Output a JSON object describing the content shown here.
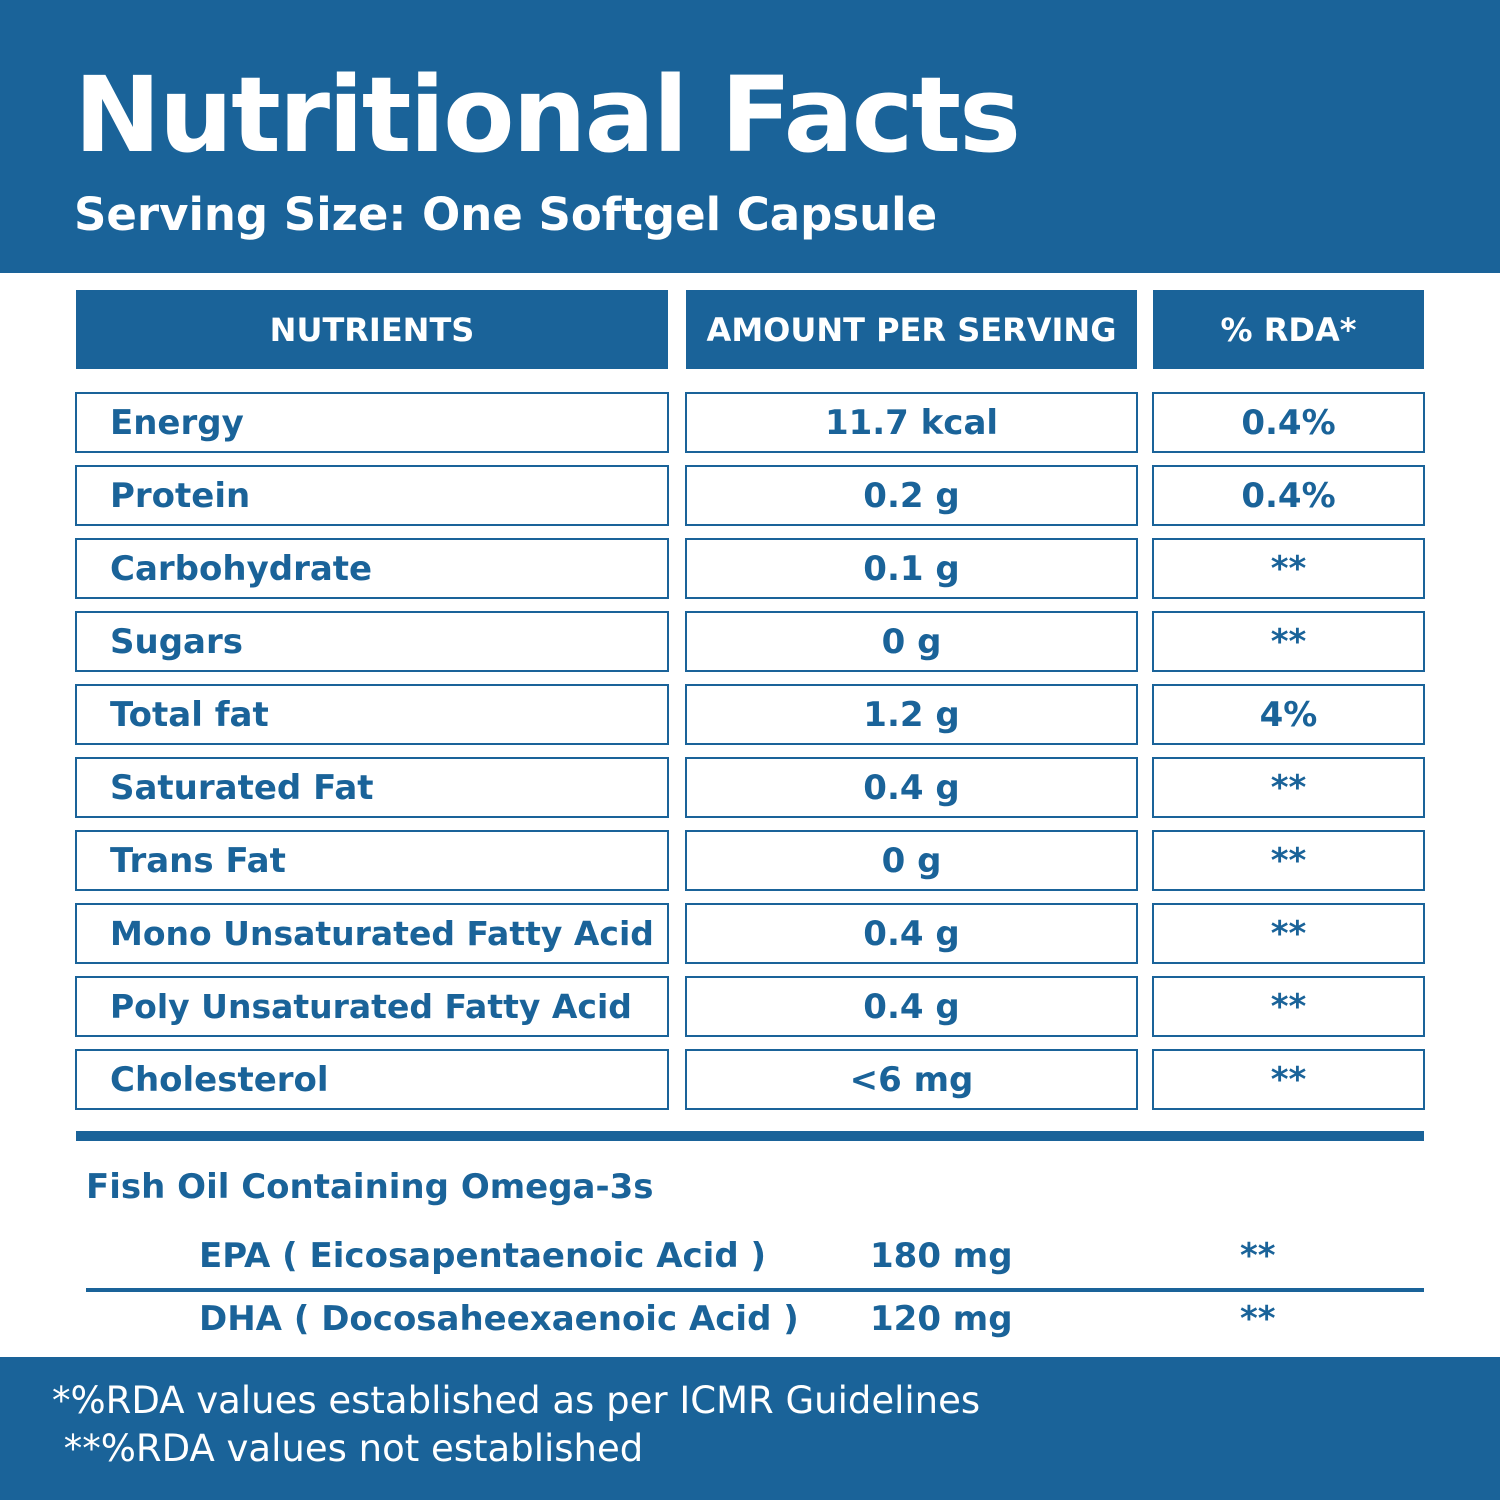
{
  "header": {
    "title": "Nutritional Facts",
    "subtitle": "Serving Size: One Softgel Capsule"
  },
  "table": {
    "columns": [
      "NUTRIENTS",
      "AMOUNT PER SERVING",
      "% RDA*"
    ],
    "rows": [
      {
        "nutrient": "Energy",
        "amount": "11.7 kcal",
        "rda": "0.4%"
      },
      {
        "nutrient": "Protein",
        "amount": "0.2 g",
        "rda": "0.4%"
      },
      {
        "nutrient": "Carbohydrate",
        "amount": "0.1 g",
        "rda": "**"
      },
      {
        "nutrient": "Sugars",
        "amount": "0 g",
        "rda": "**"
      },
      {
        "nutrient": "Total fat",
        "amount": "1.2 g",
        "rda": "4%"
      },
      {
        "nutrient": "Saturated Fat",
        "amount": "0.4 g",
        "rda": "**"
      },
      {
        "nutrient": "Trans Fat",
        "amount": "0 g",
        "rda": "**"
      },
      {
        "nutrient": "Mono Unsaturated Fatty  Acid",
        "amount": "0.4 g",
        "rda": "**"
      },
      {
        "nutrient": "Poly Unsaturated Fatty  Acid",
        "amount": "0.4 g",
        "rda": "**"
      },
      {
        "nutrient": "Cholesterol",
        "amount": "<6 mg",
        "rda": "**"
      }
    ]
  },
  "omega": {
    "title": "Fish Oil Containing Omega-3s",
    "rows": [
      {
        "name": "EPA ( Eicosapentaenoic Acid )",
        "amount": "180 mg",
        "rda": "**"
      },
      {
        "name": "DHA ( Docosaheexaenoic Acid )",
        "amount": "120 mg",
        "rda": "**"
      }
    ]
  },
  "footer": {
    "note1": "*%RDA values established as per ICMR Guidelines",
    "note2": " **%RDA values not established"
  },
  "colors": {
    "brand_blue": "#1a6399",
    "background": "#ffffff"
  }
}
